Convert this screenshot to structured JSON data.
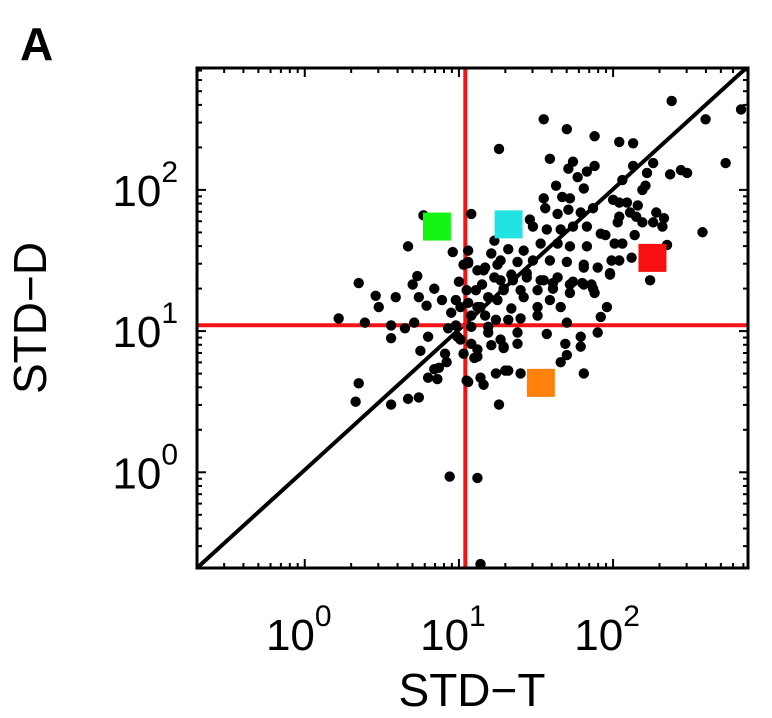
{
  "chart_data": {
    "type": "scatter",
    "panel_label": "A",
    "xlabel": "STD−T",
    "ylabel": "STD−D",
    "xscale": "log",
    "yscale": "log",
    "xlim": [
      0.2,
      750
    ],
    "ylim": [
      0.21,
      730
    ],
    "grid": false,
    "x_ticks": [
      {
        "value": 1,
        "base": "10",
        "exp": "0"
      },
      {
        "value": 10,
        "base": "10",
        "exp": "1"
      },
      {
        "value": 100,
        "base": "10",
        "exp": "2"
      }
    ],
    "y_ticks": [
      {
        "value": 1,
        "base": "10",
        "exp": "0"
      },
      {
        "value": 10,
        "base": "10",
        "exp": "1"
      },
      {
        "value": 100,
        "base": "10",
        "exp": "2"
      }
    ],
    "reference_lines": {
      "vertical_x": 11,
      "horizontal_y": 11,
      "color": "#f21414",
      "diagonal": "y = x",
      "diagonal_color": "#000000"
    },
    "point_color": "#000000",
    "highlighted_points": [
      {
        "name": "green",
        "x": 7.2,
        "y": 55,
        "color": "#14f514"
      },
      {
        "name": "cyan",
        "x": 21,
        "y": 57,
        "color": "#22e2e2"
      },
      {
        "name": "red",
        "x": 180,
        "y": 33,
        "color": "#f81010"
      },
      {
        "name": "orange",
        "x": 34,
        "y": 4.3,
        "color": "#ff800a"
      }
    ],
    "points_log10": [
      [
        0.77,
        1.82
      ],
      [
        1.08,
        1.83
      ],
      [
        0.67,
        1.6
      ],
      [
        0.96,
        1.56
      ],
      [
        0.35,
        1.34
      ],
      [
        0.73,
        1.39
      ],
      [
        0.7,
        1.33
      ],
      [
        0.46,
        1.25
      ],
      [
        0.59,
        1.24
      ],
      [
        0.74,
        1.24
      ],
      [
        0.84,
        1.3
      ],
      [
        0.48,
        1.17
      ],
      [
        0.79,
        1.18
      ],
      [
        0.89,
        1.22
      ],
      [
        0.22,
        1.09
      ],
      [
        0.39,
        1.06
      ],
      [
        0.56,
        1.04
      ],
      [
        0.65,
        1.02
      ],
      [
        0.71,
        1.06
      ],
      [
        0.56,
        0.95
      ],
      [
        0.8,
        0.96
      ],
      [
        0.75,
        0.86
      ],
      [
        0.91,
        0.84
      ],
      [
        0.92,
        0.78
      ],
      [
        0.87,
        0.74
      ],
      [
        0.84,
        0.73
      ],
      [
        0.8,
        0.67
      ],
      [
        0.86,
        0.66
      ],
      [
        0.35,
        0.63
      ],
      [
        0.33,
        0.5
      ],
      [
        0.56,
        0.48
      ],
      [
        0.67,
        0.52
      ],
      [
        0.74,
        0.53
      ],
      [
        1.06,
        0.64
      ],
      [
        1.14,
        0.67
      ],
      [
        1.16,
        0.62
      ],
      [
        1.24,
        0.7
      ],
      [
        1.3,
        0.72
      ],
      [
        1.26,
        0.48
      ],
      [
        0.95,
        1.13
      ],
      [
        1.0,
        1.35
      ],
      [
        1.03,
        1.47
      ],
      [
        1.06,
        1.57
      ],
      [
        1.06,
        1.49
      ],
      [
        1.12,
        1.43
      ],
      [
        1.21,
        1.55
      ],
      [
        1.23,
        1.64
      ],
      [
        1.27,
        1.5
      ],
      [
        1.15,
        1.33
      ],
      [
        0.98,
        1.04
      ],
      [
        0.99,
        0.96
      ],
      [
        1.08,
        0.91
      ],
      [
        1.12,
        0.82
      ],
      [
        1.19,
        0.99
      ],
      [
        1.03,
        0.84
      ],
      [
        1.29,
        0.89
      ],
      [
        0.93,
        1.02
      ],
      [
        1.01,
        1.17
      ],
      [
        1.12,
        1.17
      ],
      [
        1.19,
        1.24
      ],
      [
        1.25,
        1.22
      ],
      [
        1.27,
        1.36
      ],
      [
        2.38,
        2.63
      ],
      [
        2.83,
        2.57
      ],
      [
        2.6,
        2.5
      ],
      [
        1.55,
        2.5
      ],
      [
        1.7,
        2.43
      ],
      [
        1.88,
        2.38
      ],
      [
        1.26,
        2.29
      ],
      [
        2.04,
        2.34
      ],
      [
        2.13,
        2.33
      ],
      [
        1.59,
        2.22
      ],
      [
        1.74,
        2.2
      ],
      [
        1.71,
        2.15
      ],
      [
        1.88,
        2.17
      ],
      [
        1.83,
        2.13
      ],
      [
        1.77,
        2.09
      ],
      [
        2.13,
        2.17
      ],
      [
        2.26,
        2.19
      ],
      [
        2.73,
        2.19
      ],
      [
        2.37,
        2.11
      ],
      [
        2.44,
        2.14
      ],
      [
        2.48,
        2.12
      ],
      [
        2.22,
        2.12
      ],
      [
        2.06,
        2.07
      ],
      [
        1.63,
        2.03
      ],
      [
        1.81,
        2.01
      ],
      [
        2.21,
        2.03
      ],
      [
        2.19,
        2.0
      ],
      [
        1.55,
        1.94
      ],
      [
        1.67,
        1.95
      ],
      [
        1.72,
        1.94
      ],
      [
        2.0,
        1.93
      ],
      [
        2.04,
        1.91
      ],
      [
        2.09,
        1.91
      ],
      [
        2.16,
        1.89
      ],
      [
        1.87,
        1.87
      ],
      [
        1.56,
        1.87
      ],
      [
        1.64,
        1.83
      ],
      [
        1.71,
        1.86
      ],
      [
        1.79,
        1.84
      ],
      [
        2.04,
        1.81
      ],
      [
        2.11,
        1.84
      ],
      [
        2.15,
        1.81
      ],
      [
        2.28,
        1.84
      ],
      [
        2.33,
        1.8
      ],
      [
        2.03,
        1.77
      ],
      [
        2.19,
        1.77
      ],
      [
        2.26,
        1.77
      ],
      [
        2.32,
        1.74
      ],
      [
        2.58,
        1.7
      ],
      [
        1.46,
        1.79
      ],
      [
        1.48,
        1.74
      ],
      [
        1.57,
        1.72
      ],
      [
        1.66,
        1.72
      ],
      [
        1.74,
        1.74
      ],
      [
        1.83,
        1.74
      ],
      [
        1.92,
        1.69
      ],
      [
        2.14,
        1.68
      ],
      [
        1.32,
        1.58
      ],
      [
        1.42,
        1.57
      ],
      [
        1.53,
        1.62
      ],
      [
        1.64,
        1.62
      ],
      [
        1.72,
        1.6
      ],
      [
        1.83,
        1.6
      ],
      [
        1.95,
        1.68
      ],
      [
        2.01,
        1.62
      ],
      [
        2.06,
        1.62
      ],
      [
        2.35,
        1.61
      ],
      [
        1.99,
        1.5
      ],
      [
        2.04,
        1.5
      ],
      [
        2.12,
        1.52
      ],
      [
        1.38,
        1.49
      ],
      [
        1.48,
        1.5
      ],
      [
        1.59,
        1.5
      ],
      [
        1.7,
        1.49
      ],
      [
        1.81,
        1.47
      ],
      [
        1.9,
        1.45
      ],
      [
        1.98,
        1.41
      ],
      [
        2.24,
        1.36
      ],
      [
        1.17,
        1.45
      ],
      [
        1.23,
        1.38
      ],
      [
        1.34,
        1.4
      ],
      [
        1.44,
        1.38
      ],
      [
        1.55,
        1.36
      ],
      [
        1.64,
        1.38
      ],
      [
        1.74,
        1.35
      ],
      [
        1.81,
        1.33
      ],
      [
        1.87,
        1.3
      ],
      [
        1.29,
        1.3
      ],
      [
        1.4,
        1.29
      ],
      [
        1.51,
        1.29
      ],
      [
        1.61,
        1.3
      ],
      [
        1.72,
        1.27
      ],
      [
        1.06,
        1.48
      ],
      [
        1.16,
        1.43
      ],
      [
        1.25,
        1.47
      ],
      [
        1.29,
        1.29
      ],
      [
        1.35,
        1.36
      ],
      [
        1.44,
        1.41
      ],
      [
        1.53,
        1.36
      ],
      [
        1.61,
        1.34
      ],
      [
        1.72,
        1.33
      ],
      [
        1.8,
        1.34
      ],
      [
        1.86,
        1.33
      ],
      [
        1.88,
        1.27
      ],
      [
        1.98,
        1.4
      ],
      [
        1.81,
        1.45
      ],
      [
        1.06,
        1.2
      ],
      [
        1.14,
        1.17
      ],
      [
        1.34,
        1.16
      ],
      [
        1.42,
        1.24
      ],
      [
        1.51,
        1.17
      ],
      [
        1.59,
        1.22
      ],
      [
        1.66,
        1.17
      ],
      [
        1.96,
        1.17
      ],
      [
        1.92,
        1.1
      ],
      [
        1.7,
        1.06
      ],
      [
        1.9,
        0.99
      ],
      [
        1.57,
        0.98
      ],
      [
        1.79,
        0.96
      ],
      [
        1.69,
        0.91
      ],
      [
        1.79,
        0.89
      ],
      [
        1.7,
        0.83
      ],
      [
        1.66,
        0.78
      ],
      [
        1.81,
        0.7
      ],
      [
        1.4,
        0.7
      ],
      [
        1.32,
        0.72
      ],
      [
        1.05,
        0.65
      ],
      [
        1.12,
        -0.04
      ],
      [
        1.14,
        -0.65
      ],
      [
        1.08,
        1.03
      ],
      [
        1.19,
        1.03
      ],
      [
        1.27,
        0.94
      ],
      [
        1.38,
        0.91
      ],
      [
        1.29,
        0.88
      ],
      [
        1.21,
        0.9
      ],
      [
        1.12,
        0.87
      ],
      [
        1.1,
        0.81
      ],
      [
        1.38,
        0.99
      ],
      [
        1.51,
        1.11
      ],
      [
        1.4,
        1.09
      ],
      [
        1.32,
        1.08
      ],
      [
        0.94,
        -0.03
      ],
      [
        1.11,
        1.29
      ],
      [
        1.05,
        1.29
      ],
      [
        0.98,
        1.22
      ],
      [
        1.08,
        1.11
      ],
      [
        1.17,
        1.11
      ],
      [
        1.24,
        1.08
      ],
      [
        1.01,
        0.94
      ]
    ]
  }
}
